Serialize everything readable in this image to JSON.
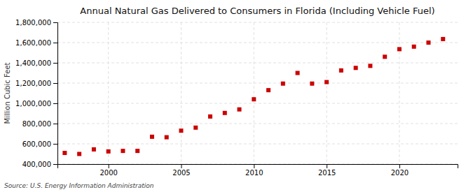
{
  "chart_data": {
    "type": "scatter",
    "title": "Annual Natural Gas Delivered to Consumers in Florida (Including Vehicle Fuel)",
    "ylabel": "Million Cubic Feet",
    "annotations": [
      "Source: U.S. Energy Information Administration"
    ],
    "x": [
      1997,
      1998,
      1999,
      2000,
      2001,
      2002,
      2003,
      2004,
      2005,
      2006,
      2007,
      2008,
      2009,
      2010,
      2011,
      2012,
      2013,
      2014,
      2015,
      2016,
      2017,
      2018,
      2019,
      2020,
      2021,
      2022,
      2023
    ],
    "values": [
      510000,
      500000,
      545000,
      525000,
      530000,
      530000,
      670000,
      665000,
      730000,
      760000,
      870000,
      905000,
      940000,
      1040000,
      1130000,
      1195000,
      1300000,
      1195000,
      1210000,
      1325000,
      1350000,
      1370000,
      1460000,
      1535000,
      1560000,
      1600000,
      1635000
    ],
    "color": "#cc0000",
    "marker": "square",
    "xlim": [
      1996.5,
      2024
    ],
    "xticks": [
      2000,
      2005,
      2010,
      2015,
      2020
    ],
    "ylim": [
      400000,
      1800000
    ],
    "yticks": [
      {
        "value": 400000,
        "label": "400,000"
      },
      {
        "value": 600000,
        "label": "600,000"
      },
      {
        "value": 800000,
        "label": "800,000"
      },
      {
        "value": 1000000,
        "label": "1,000,000"
      },
      {
        "value": 1200000,
        "label": "1,200,000"
      },
      {
        "value": 1400000,
        "label": "1,400,000"
      },
      {
        "value": 1600000,
        "label": "1,600,000"
      },
      {
        "value": 1800000,
        "label": "1,800,000"
      }
    ],
    "grid": true
  }
}
